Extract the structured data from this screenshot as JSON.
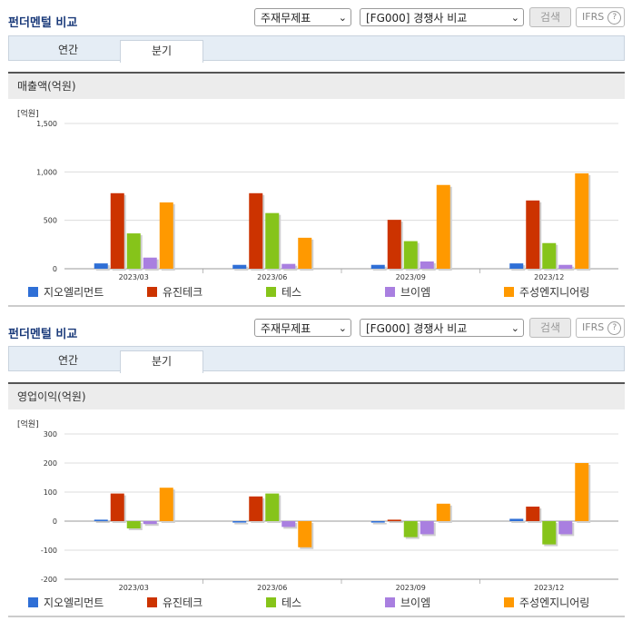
{
  "sections": [
    {
      "title": "펀더멘털 비교",
      "select1": "주재무제표",
      "select2": "[FG000] 경쟁사 비교",
      "search": "검색",
      "ifrs": "IFRS",
      "tabs": [
        "연간",
        "분기"
      ],
      "active_tab": 1,
      "subhead": "매출액(억원)"
    },
    {
      "title": "펀더멘털 비교",
      "select1": "주재무제표",
      "select2": "[FG000] 경쟁사 비교",
      "search": "검색",
      "ifrs": "IFRS",
      "tabs": [
        "연간",
        "분기"
      ],
      "active_tab": 1,
      "subhead": "영업이익(억원)"
    }
  ],
  "legend_colors": [
    "#2f6fd6",
    "#cc3300",
    "#86c41a",
    "#a97fe0",
    "#ff9900"
  ],
  "chart_data": [
    {
      "type": "bar",
      "unit_label": "[억원]",
      "categories": [
        "2023/03",
        "2023/06",
        "2023/09",
        "2023/12"
      ],
      "ylim": [
        0,
        1500
      ],
      "yticks": [
        "1,500",
        "1,000",
        "500",
        "0"
      ],
      "ytick_values": [
        1500,
        1000,
        500,
        0
      ],
      "series": [
        {
          "name": "지오엘리먼트",
          "values": [
            55,
            40,
            40,
            55
          ]
        },
        {
          "name": "유진테크",
          "values": [
            780,
            780,
            505,
            705
          ]
        },
        {
          "name": "테스",
          "values": [
            365,
            575,
            285,
            265
          ]
        },
        {
          "name": "브이엠",
          "values": [
            115,
            50,
            75,
            40
          ]
        },
        {
          "name": "주성엔지니어링",
          "values": [
            685,
            320,
            865,
            985
          ]
        }
      ]
    },
    {
      "type": "bar",
      "unit_label": "[억원]",
      "categories": [
        "2023/03",
        "2023/06",
        "2023/09",
        "2023/12"
      ],
      "ylim": [
        -200,
        300
      ],
      "yticks": [
        "300",
        "200",
        "100",
        "0",
        "-100",
        "-200"
      ],
      "ytick_values": [
        300,
        200,
        100,
        0,
        -100,
        -200
      ],
      "series": [
        {
          "name": "지오엘리먼트",
          "values": [
            5,
            -5,
            -5,
            8
          ]
        },
        {
          "name": "유진테크",
          "values": [
            95,
            85,
            5,
            50
          ]
        },
        {
          "name": "테스",
          "values": [
            -25,
            95,
            -55,
            -80
          ]
        },
        {
          "name": "브이엠",
          "values": [
            -10,
            -20,
            -45,
            -45
          ]
        },
        {
          "name": "주성엔지니어링",
          "values": [
            115,
            -90,
            60,
            200
          ]
        }
      ]
    }
  ]
}
